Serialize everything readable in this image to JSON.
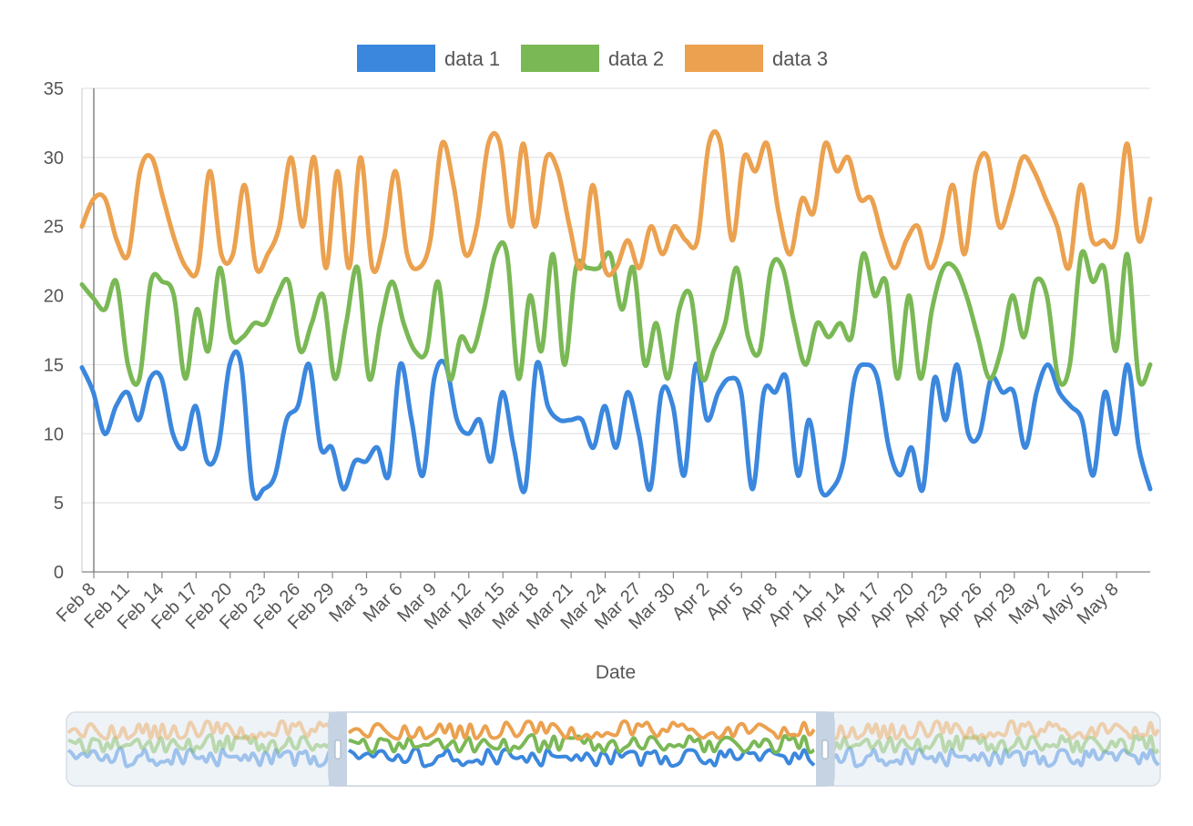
{
  "chart_data": {
    "type": "line",
    "title": "",
    "xlabel": "Date",
    "ylabel": "",
    "ylim": [
      0,
      35
    ],
    "yticks": [
      0,
      5,
      10,
      15,
      20,
      25,
      30,
      35
    ],
    "grid": true,
    "legend_position": "top",
    "x_start": "Feb 8",
    "x_tick_labels": [
      "Feb 8",
      "Feb 11",
      "Feb 14",
      "Feb 17",
      "Feb 20",
      "Feb 23",
      "Feb 26",
      "Feb 29",
      "Mar 3",
      "Mar 6",
      "Mar 9",
      "Mar 12",
      "Mar 15",
      "Mar 18",
      "Mar 21",
      "Mar 24",
      "Mar 27",
      "Mar 30",
      "Apr 2",
      "Apr 5",
      "Apr 8",
      "Apr 11",
      "Apr 14",
      "Apr 17",
      "Apr 20",
      "Apr 23",
      "Apr 26",
      "Apr 29",
      "May 2",
      "May 5",
      "May 8"
    ],
    "series": [
      {
        "name": "data 1",
        "color": "#3b87dd",
        "values": [
          14.8,
          13,
          10,
          12,
          13,
          11,
          14,
          14,
          10,
          9,
          12,
          8,
          9,
          15,
          15,
          6,
          6,
          7,
          11,
          12,
          15,
          9,
          9,
          6,
          8,
          8,
          9,
          7,
          15,
          11,
          7,
          14,
          15,
          11,
          10,
          11,
          8,
          13,
          9,
          6,
          15,
          12,
          11,
          11,
          11,
          9,
          12,
          9,
          13,
          10,
          6,
          13,
          12,
          7,
          15,
          11,
          13,
          14,
          13,
          6,
          13,
          13,
          14,
          7,
          11,
          6,
          6,
          8,
          14,
          15,
          14,
          9,
          7,
          9,
          6,
          14,
          11,
          15,
          10,
          10,
          14,
          13,
          13,
          9,
          13,
          15,
          13,
          12,
          11,
          7,
          13,
          10,
          15,
          9,
          6
        ]
      },
      {
        "name": "data 2",
        "color": "#7ab855",
        "values": [
          20.8,
          19.8,
          19,
          21,
          15,
          14,
          21,
          21,
          20,
          14,
          19,
          16,
          22,
          17,
          17,
          18,
          18,
          20,
          21,
          16,
          18,
          20,
          14,
          18,
          22,
          14,
          18,
          21,
          18,
          16,
          16,
          21,
          14,
          17,
          16,
          19,
          23,
          23,
          14,
          20,
          16,
          23,
          15,
          22,
          22,
          22,
          23,
          19,
          22,
          15,
          18,
          14,
          19,
          20,
          14,
          16,
          18,
          22,
          17,
          16,
          22,
          22,
          18,
          15,
          18,
          17,
          18,
          17,
          23,
          20,
          21,
          14,
          20,
          14,
          19,
          22,
          22,
          20,
          17,
          14,
          16,
          20,
          17,
          21,
          20,
          14,
          15,
          23,
          21,
          22,
          16,
          23,
          14,
          15
        ]
      },
      {
        "name": "data 3",
        "color": "#eba14f",
        "values": [
          25,
          27,
          27,
          24,
          23,
          29,
          30,
          27,
          24,
          22,
          22,
          29,
          23,
          23,
          28,
          22,
          23,
          25,
          30,
          25,
          30,
          22,
          29,
          22,
          30,
          22,
          24,
          29,
          23,
          22,
          24,
          31,
          28,
          23,
          25,
          31,
          31,
          25,
          31,
          25,
          30,
          29,
          25,
          22,
          28,
          22,
          22,
          24,
          22,
          25,
          23,
          25,
          24,
          24,
          31,
          31,
          24,
          30,
          29,
          31,
          26,
          23,
          27,
          26,
          31,
          29,
          30,
          27,
          27,
          24,
          22,
          24,
          25,
          22,
          24,
          28,
          23,
          29,
          30,
          25,
          27,
          30,
          29,
          27,
          25,
          22,
          28,
          24,
          24,
          24,
          31,
          24,
          27
        ]
      }
    ]
  },
  "x_axis_label": "Date"
}
